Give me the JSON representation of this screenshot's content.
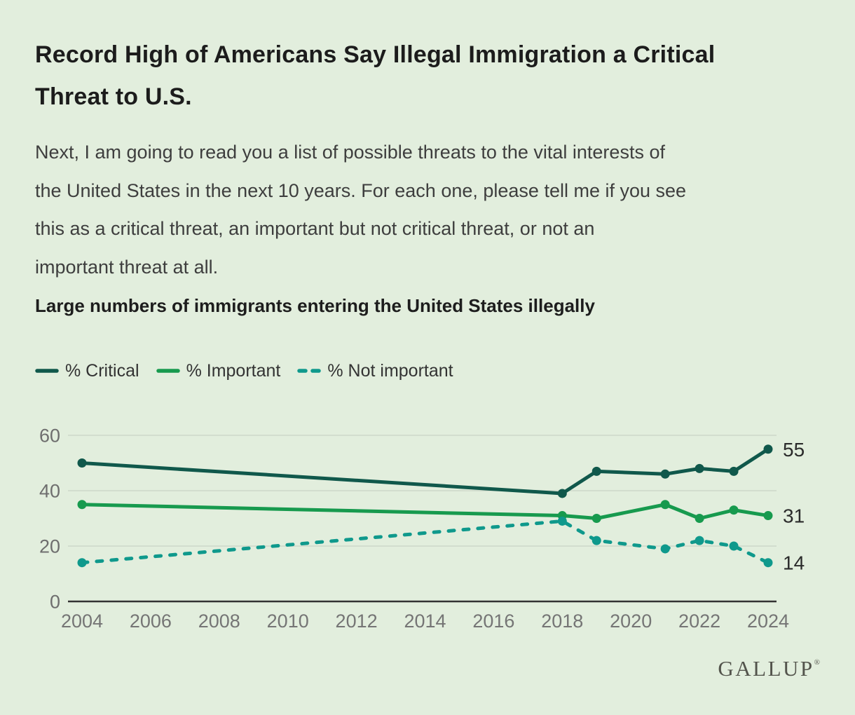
{
  "page": {
    "background_color": "#e2eedd"
  },
  "header": {
    "title_lines": [
      "Record High of Americans Say Illegal Immigration a Critical",
      "Threat to U.S."
    ],
    "question_intro_lines": [
      "Next, I am going to read you a list of possible threats to the vital interests of",
      "the United States in the next 10 years. For each one, please tell me if you see",
      "this as a critical threat, an important but not critical threat, or not an",
      "important threat at all."
    ],
    "question_item": "Large numbers of immigrants entering the United States illegally"
  },
  "legend": {
    "items": [
      {
        "label": "% Critical",
        "color": "#10584b",
        "style": "solid"
      },
      {
        "label": "% Important",
        "color": "#179a4e",
        "style": "solid"
      },
      {
        "label": "% Not important",
        "color": "#0f998c",
        "style": "dashed"
      }
    ]
  },
  "chart_data": {
    "type": "line",
    "title": "Large numbers of immigrants entering the United States illegally",
    "x": [
      2004,
      2018,
      2019,
      2021,
      2022,
      2023,
      2024
    ],
    "series": [
      {
        "name": "% Critical",
        "values": [
          50,
          39,
          47,
          46,
          48,
          47,
          55
        ],
        "color": "#10584b",
        "style": "solid",
        "end_label": "55"
      },
      {
        "name": "% Important",
        "values": [
          35,
          31,
          30,
          35,
          30,
          33,
          31
        ],
        "color": "#179a4e",
        "style": "solid",
        "end_label": "31"
      },
      {
        "name": "% Not important",
        "values": [
          14,
          29,
          22,
          19,
          22,
          20,
          14
        ],
        "color": "#0f998c",
        "style": "dashed",
        "end_label": "14"
      }
    ],
    "x_ticks": [
      2004,
      2006,
      2008,
      2010,
      2012,
      2014,
      2016,
      2018,
      2020,
      2022,
      2024
    ],
    "y_ticks": [
      0,
      20,
      40,
      60
    ],
    "xlim": [
      2004,
      2024
    ],
    "ylim": [
      0,
      60
    ],
    "grid": true,
    "legend_position": "top-left",
    "axis_color": "#333333",
    "gridline_color": "#ccd7c9",
    "tick_label_color": "#6e6e6e",
    "end_label_color": "#2b2b2b"
  },
  "footer": {
    "logo_text": "GALLUP",
    "logo_registered_mark": "®"
  }
}
